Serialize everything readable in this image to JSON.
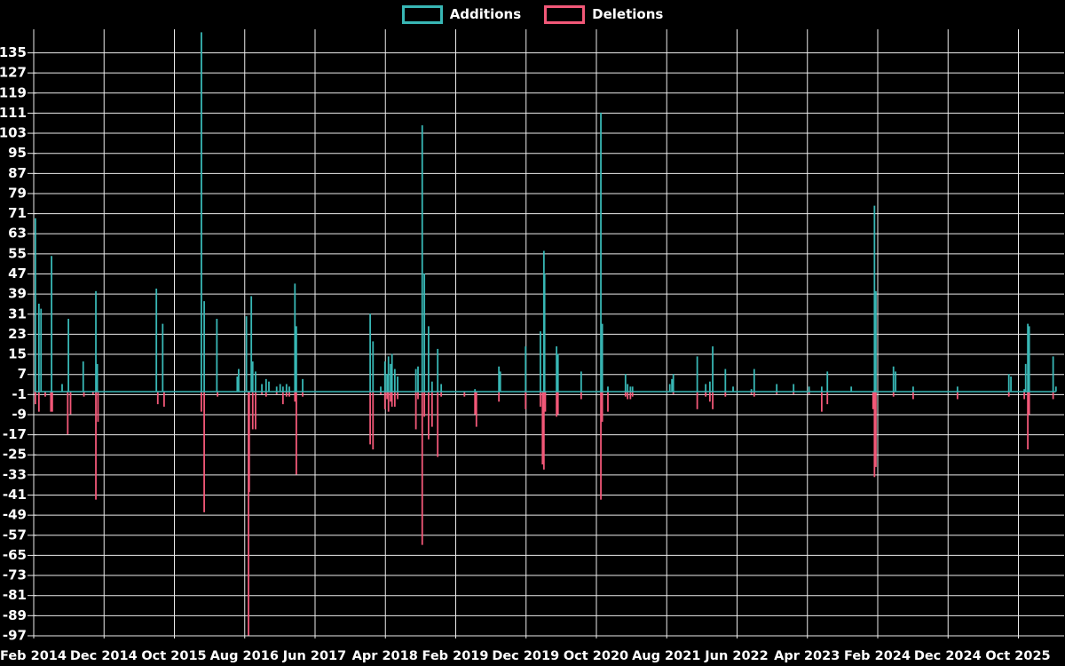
{
  "legend": {
    "items": [
      {
        "label": "Additions",
        "color": "#38b7b5"
      },
      {
        "label": "Deletions",
        "color": "#f25878"
      }
    ]
  },
  "chart_data": {
    "type": "line",
    "title": "",
    "subtitle": "",
    "background": "#000000",
    "grid": true,
    "gridline_color": "#ffffff",
    "text_color": "#ffffff",
    "baseline_value": 0,
    "x_axis": {
      "unit": "months since Feb 2014",
      "ticks": [
        {
          "m": 0,
          "label": "Feb 2014"
        },
        {
          "m": 10,
          "label": "Dec 2014"
        },
        {
          "m": 20,
          "label": "Oct 2015"
        },
        {
          "m": 30,
          "label": "Aug 2016"
        },
        {
          "m": 40,
          "label": "Jun 2017"
        },
        {
          "m": 50,
          "label": "Apr 2018"
        },
        {
          "m": 60,
          "label": "Feb 2019"
        },
        {
          "m": 70,
          "label": "Dec 2019"
        },
        {
          "m": 80,
          "label": "Oct 2020"
        },
        {
          "m": 90,
          "label": "Aug 2021"
        },
        {
          "m": 100,
          "label": "Jun 2022"
        },
        {
          "m": 110,
          "label": "Apr 2023"
        },
        {
          "m": 120,
          "label": "Feb 2024"
        },
        {
          "m": 130,
          "label": "Dec 2024"
        },
        {
          "m": 140,
          "label": "Oct 2025"
        }
      ],
      "range_months": [
        0,
        146.4
      ]
    },
    "y_axis": {
      "tick_step": 8,
      "ticks": [
        135,
        127,
        119,
        111,
        103,
        95,
        87,
        79,
        71,
        63,
        55,
        47,
        39,
        31,
        23,
        15,
        7,
        -1,
        -9,
        -17,
        -25,
        -33,
        -41,
        -49,
        -57,
        -65,
        -73,
        -81,
        -89,
        -97
      ],
      "range": [
        -98.5,
        143.5
      ]
    },
    "series": [
      {
        "name": "Additions",
        "color": "#38b7b5",
        "points": [
          [
            0.3,
            69
          ],
          [
            0.8,
            35
          ],
          [
            1.1,
            33
          ],
          [
            2.6,
            54
          ],
          [
            4.1,
            3
          ],
          [
            5.0,
            29
          ],
          [
            7.1,
            12
          ],
          [
            8.9,
            40
          ],
          [
            9.1,
            11
          ],
          [
            17.5,
            41
          ],
          [
            18.4,
            27
          ],
          [
            23.9,
            143
          ],
          [
            24.3,
            36
          ],
          [
            26.1,
            29
          ],
          [
            29.0,
            6
          ],
          [
            29.2,
            9
          ],
          [
            30.3,
            30
          ],
          [
            31.0,
            38
          ],
          [
            31.2,
            12
          ],
          [
            31.6,
            8
          ],
          [
            32.5,
            3
          ],
          [
            33.1,
            5
          ],
          [
            33.5,
            4
          ],
          [
            34.6,
            2
          ],
          [
            35.1,
            3
          ],
          [
            35.5,
            2
          ],
          [
            36.0,
            3
          ],
          [
            36.4,
            2
          ],
          [
            37.2,
            43
          ],
          [
            37.4,
            26
          ],
          [
            38.3,
            5
          ],
          [
            47.9,
            31
          ],
          [
            48.3,
            20
          ],
          [
            49.4,
            2
          ],
          [
            50.0,
            12
          ],
          [
            50.3,
            7
          ],
          [
            50.5,
            14
          ],
          [
            50.8,
            11
          ],
          [
            51.0,
            15
          ],
          [
            51.4,
            9
          ],
          [
            51.8,
            6
          ],
          [
            54.4,
            9
          ],
          [
            54.7,
            10
          ],
          [
            55.3,
            106
          ],
          [
            55.6,
            47
          ],
          [
            56.2,
            26
          ],
          [
            56.7,
            4
          ],
          [
            57.5,
            17
          ],
          [
            58.0,
            3
          ],
          [
            62.8,
            1
          ],
          [
            66.2,
            10
          ],
          [
            66.4,
            8
          ],
          [
            70.0,
            18
          ],
          [
            72.1,
            24
          ],
          [
            72.6,
            56
          ],
          [
            72.7,
            47
          ],
          [
            74.4,
            18
          ],
          [
            74.6,
            15
          ],
          [
            77.9,
            8
          ],
          [
            80.7,
            111
          ],
          [
            80.9,
            27
          ],
          [
            81.7,
            2
          ],
          [
            84.2,
            7
          ],
          [
            84.5,
            3
          ],
          [
            84.9,
            2
          ],
          [
            85.2,
            2
          ],
          [
            90.5,
            3
          ],
          [
            90.8,
            5
          ],
          [
            91.0,
            7
          ],
          [
            94.4,
            14
          ],
          [
            95.6,
            3
          ],
          [
            96.2,
            4
          ],
          [
            96.6,
            18
          ],
          [
            98.4,
            9
          ],
          [
            99.5,
            2
          ],
          [
            102.1,
            1
          ],
          [
            102.5,
            9
          ],
          [
            105.7,
            3
          ],
          [
            108.1,
            3
          ],
          [
            110.3,
            2
          ],
          [
            112.1,
            2
          ],
          [
            112.9,
            8
          ],
          [
            116.3,
            2
          ],
          [
            119.6,
            74
          ],
          [
            119.8,
            40
          ],
          [
            122.3,
            10
          ],
          [
            122.6,
            8
          ],
          [
            125.1,
            2
          ],
          [
            131.4,
            2
          ],
          [
            138.7,
            7
          ],
          [
            139.0,
            6
          ],
          [
            140.9,
            1
          ],
          [
            141.1,
            11
          ],
          [
            141.4,
            27
          ],
          [
            141.6,
            26
          ],
          [
            145.0,
            14
          ],
          [
            145.4,
            2
          ]
        ]
      },
      {
        "name": "Deletions",
        "color": "#f25878",
        "points": [
          [
            0.3,
            -5
          ],
          [
            0.8,
            -8
          ],
          [
            1.7,
            -2
          ],
          [
            2.5,
            -8
          ],
          [
            2.7,
            -8
          ],
          [
            4.9,
            -17
          ],
          [
            5.3,
            -9
          ],
          [
            7.2,
            -2
          ],
          [
            8.5,
            -1
          ],
          [
            8.9,
            -43
          ],
          [
            9.2,
            -12
          ],
          [
            17.7,
            -5
          ],
          [
            18.6,
            -6
          ],
          [
            23.9,
            -8
          ],
          [
            24.3,
            -48
          ],
          [
            26.2,
            -2
          ],
          [
            30.6,
            -97
          ],
          [
            30.7,
            -40
          ],
          [
            31.2,
            -15
          ],
          [
            31.6,
            -15
          ],
          [
            32.5,
            -1
          ],
          [
            33.1,
            -2
          ],
          [
            34.6,
            -1
          ],
          [
            35.5,
            -5
          ],
          [
            36.0,
            -2
          ],
          [
            36.4,
            -2
          ],
          [
            37.2,
            -4
          ],
          [
            37.4,
            -33
          ],
          [
            38.3,
            -2
          ],
          [
            47.9,
            -21
          ],
          [
            48.3,
            -23
          ],
          [
            49.4,
            -1
          ],
          [
            50.0,
            -7
          ],
          [
            50.3,
            -3
          ],
          [
            50.5,
            -8
          ],
          [
            50.8,
            -4
          ],
          [
            51.0,
            -6
          ],
          [
            51.4,
            -6
          ],
          [
            51.8,
            -3
          ],
          [
            54.4,
            -15
          ],
          [
            54.7,
            -3
          ],
          [
            55.3,
            -61
          ],
          [
            55.6,
            -10
          ],
          [
            56.2,
            -19
          ],
          [
            56.7,
            -14
          ],
          [
            57.5,
            -26
          ],
          [
            58.0,
            -2
          ],
          [
            61.3,
            -2
          ],
          [
            62.8,
            -9
          ],
          [
            63.0,
            -14
          ],
          [
            66.2,
            -4
          ],
          [
            70.0,
            -7
          ],
          [
            72.1,
            -6
          ],
          [
            72.4,
            -29
          ],
          [
            72.6,
            -31
          ],
          [
            72.8,
            -8
          ],
          [
            74.4,
            -10
          ],
          [
            74.6,
            -9
          ],
          [
            77.9,
            -3
          ],
          [
            80.7,
            -43
          ],
          [
            80.9,
            -12
          ],
          [
            81.7,
            -8
          ],
          [
            84.2,
            -2
          ],
          [
            84.5,
            -3
          ],
          [
            84.9,
            -3
          ],
          [
            85.2,
            -2
          ],
          [
            91.0,
            -1
          ],
          [
            94.4,
            -7
          ],
          [
            95.6,
            -2
          ],
          [
            96.2,
            -4
          ],
          [
            96.6,
            -7
          ],
          [
            98.4,
            -2
          ],
          [
            102.1,
            -1
          ],
          [
            102.5,
            -2
          ],
          [
            105.7,
            -1
          ],
          [
            108.1,
            -1
          ],
          [
            110.3,
            -1
          ],
          [
            112.1,
            -8
          ],
          [
            112.9,
            -5
          ],
          [
            119.4,
            -7
          ],
          [
            119.6,
            -34
          ],
          [
            119.8,
            -30
          ],
          [
            122.3,
            -2
          ],
          [
            125.1,
            -3
          ],
          [
            131.4,
            -3
          ],
          [
            138.7,
            -2
          ],
          [
            140.9,
            -3
          ],
          [
            141.4,
            -23
          ],
          [
            141.6,
            -9
          ],
          [
            145.0,
            -3
          ]
        ]
      }
    ]
  }
}
